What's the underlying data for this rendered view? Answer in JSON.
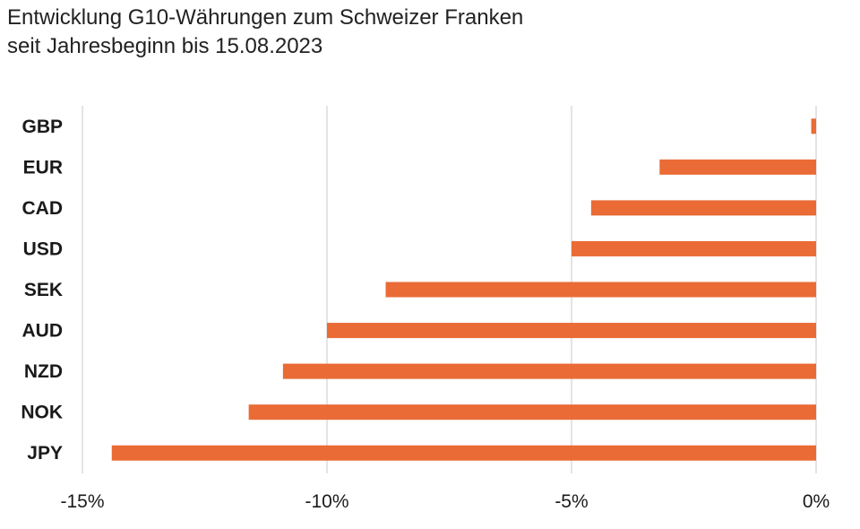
{
  "header": {
    "title_line1": "Entwicklung G10-Währungen zum Schweizer Franken",
    "title_line2": "seit Jahresbeginn bis 15.08.2023"
  },
  "colors": {
    "bar": "#EA6B35",
    "grid": "#d6d6d6",
    "text": "#1a1a1a"
  },
  "chart_data": {
    "type": "bar",
    "orientation": "horizontal",
    "title": "Entwicklung G10-Währungen zum Schweizer Franken seit Jahresbeginn bis 15.08.2023",
    "xlabel": "",
    "ylabel": "",
    "categories": [
      "GBP",
      "EUR",
      "CAD",
      "USD",
      "SEK",
      "AUD",
      "NZD",
      "NOK",
      "JPY"
    ],
    "values": [
      -0.1,
      -3.2,
      -4.6,
      -5.0,
      -8.8,
      -10.0,
      -10.9,
      -11.6,
      -14.4
    ],
    "unit": "%",
    "xlim": [
      -15,
      0
    ],
    "xticks": [
      -15,
      -10,
      -5,
      0
    ],
    "xtick_labels": [
      "-15%",
      "-10%",
      "-5%",
      "0%"
    ],
    "grid": true,
    "legend": "none"
  }
}
